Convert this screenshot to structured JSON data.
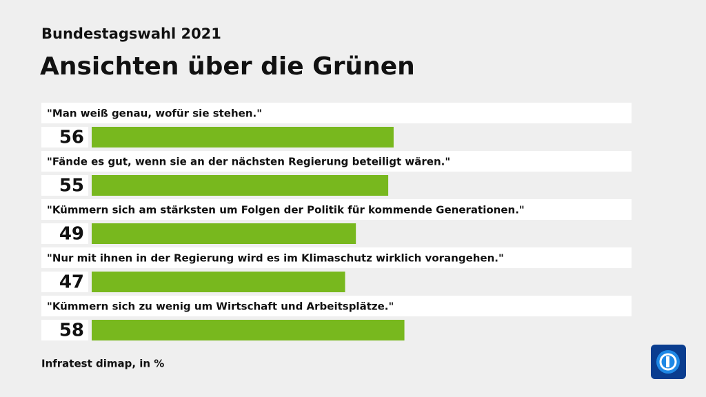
{
  "chart_data": {
    "type": "bar",
    "orientation": "horizontal",
    "subtitle": "Bundestagswahl 2021",
    "title": "Ansichten über die Grünen",
    "categories": [
      "\"Man weiß genau, wofür sie stehen.\"",
      "\"Fände es gut, wenn sie an der nächsten Regierung beteiligt wären.\"",
      "\"Kümmern sich am stärksten um Folgen der Politik für kommende Generationen.\"",
      "\"Nur mit ihnen in der Regierung wird es im Klimaschutz wirklich vorangehen.\"",
      "\"Kümmern sich zu wenig um Wirtschaft und Arbeitsplätze.\""
    ],
    "values": [
      56,
      55,
      49,
      47,
      58
    ],
    "color": "#78b81e",
    "xlim": [
      0,
      100
    ],
    "source": "Infratest dimap, in %"
  }
}
